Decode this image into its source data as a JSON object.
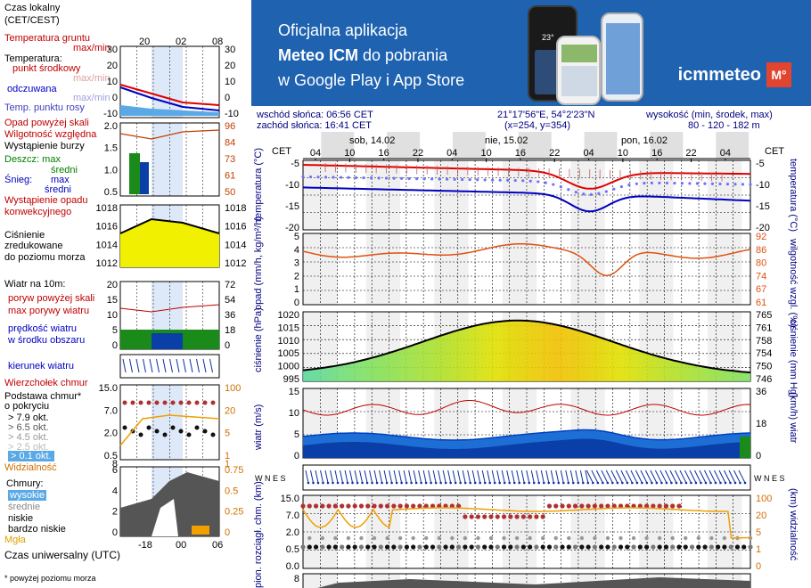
{
  "banner": {
    "line1": "Oficjalna aplikacja",
    "line2_bold": "Meteo ICM",
    "line2_rest": " do pobrania",
    "line3": "w Google Play i App Store",
    "logo_name": "icmmeteo",
    "logo_badge": "M°",
    "phone_temp": "23°"
  },
  "legend": {
    "czas_lokalny": "Czas lokalny",
    "czas_lokalny_2": "(CET/CEST)",
    "local_ticks": [
      "20",
      "02",
      "08"
    ],
    "temp_gruntu": "Temperatura gruntu",
    "max_min": "max/min",
    "temperatura": "Temperatura:",
    "punkt_srodkowy": "punkt środkowy",
    "max_min_2": "max/min",
    "odczuwana": "odczuwana",
    "max_min_3": "max/min",
    "punkt_rosy": "Temp. punktu rosy",
    "temp_ticks": [
      "30",
      "20",
      "10",
      "0",
      "-10"
    ],
    "opad_powyzej": "Opad powyżej skali",
    "wilgotnosc": "Wilgotność względna",
    "burza": "Wystąpienie burzy",
    "deszcz_max": "Deszcz: max",
    "deszcz_sredni": "średni",
    "snieg_max": "max",
    "snieg_sredni": "średni",
    "snieg": "Śnieg:",
    "opad_konw": "Wystąpienie opadu",
    "opad_konw_2": "konwekcyjnego",
    "precip_ticks": [
      "2.0",
      "1.5",
      "1.0",
      "0.5"
    ],
    "hum_ticks": [
      "96",
      "84",
      "73",
      "61",
      "50"
    ],
    "cisnienie": "Ciśnienie",
    "zredukowane": "zredukowane",
    "do_poziomu": "do poziomu morza",
    "press_ticks": [
      "1018",
      "1016",
      "1014",
      "1012"
    ],
    "wiatr_na": "Wiatr na 10m:",
    "poryw_powyzej": "poryw powyżej skali",
    "max_porywy": "max porywy wiatru",
    "predkosc": "prędkość wiatru",
    "w_srodku": "w środku obszaru",
    "wind_ticks": [
      "20",
      "15",
      "10",
      "5",
      "0"
    ],
    "wind_kmh_ticks": [
      "72",
      "54",
      "36",
      "18",
      "0"
    ],
    "kierunek": "kierunek wiatru",
    "wierzcholek": "Wierzchołek chmur",
    "podstawa": "Podstawa chmur*",
    "o_pokryciu": "o pokryciu",
    "okt_79": "> 7.9 okt.",
    "okt_65": "> 6.5 okt.",
    "okt_45": "> 4.5 okt.",
    "okt_25": "> 2.5 okt.",
    "okt_01": "> 0.1 okt.",
    "cloud_ticks": [
      "15.0",
      "7.0",
      "2.0",
      "0.5"
    ],
    "cloud_right_ticks": [
      "100",
      "20",
      "5",
      "1"
    ],
    "widzialnosc": "Widzialność",
    "vis_ticks": [
      "8",
      "1"
    ],
    "chmury": "Chmury:",
    "wysokie": "wysokie",
    "srednie": "średnie",
    "niskie": "niskie",
    "bardzo_niskie": "bardzo niskie",
    "mgla": "Mgła",
    "cover_ticks": [
      "6",
      "4",
      "2",
      "0"
    ],
    "cover_right_ticks": [
      "0.75",
      "0.5",
      "0.25",
      "0"
    ],
    "utc_ticks": [
      "-18",
      "00",
      "06"
    ],
    "czas_uniwersalny": "Czas uniwersalny (UTC)",
    "footnote": "* powyżej poziomu morza"
  },
  "info": {
    "sunrise": "wschód słońca: 06:56 CET",
    "sunset": "zachód słońca: 16:41 CET",
    "coords": "21°17'56\"E, 54°2'23\"N",
    "grid": "(x=254,  y=354)",
    "height_label": "wysokość (min, środek, max)",
    "height_values": "80 - 120 - 182 m"
  },
  "timeline": {
    "cet": "CET",
    "days": [
      "sob, 14.02",
      "nie, 15.02",
      "pon, 16.02"
    ],
    "hours": [
      "04",
      "10",
      "16",
      "22",
      "04",
      "10",
      "16",
      "22",
      "04",
      "10",
      "16",
      "22",
      "04"
    ]
  },
  "panels": {
    "temperature": {
      "left_label": "temperatura (°C)",
      "right_label": "temperatura (°C)",
      "left_ticks": [
        "-5",
        "-10",
        "-15",
        "-20"
      ],
      "right_ticks": [
        "-5",
        "-10",
        "-15",
        "-20"
      ]
    },
    "precip": {
      "left_label": "opad (mm/h, kg/m²/h)",
      "right_label": "wilgotność wzgl. (%)",
      "left_ticks": [
        "5",
        "4",
        "3",
        "2",
        "1",
        "0"
      ],
      "right_ticks": [
        "92",
        "86",
        "80",
        "74",
        "67",
        "61"
      ]
    },
    "pressure": {
      "left_label": "ciśnienie (hPa)",
      "right_label": "ciśnienie (mm Hg)",
      "left_ticks": [
        "1020",
        "1015",
        "1010",
        "1005",
        "1000",
        "995"
      ],
      "right_ticks": [
        "765",
        "761",
        "758",
        "754",
        "750",
        "746"
      ]
    },
    "wind": {
      "left_label": "wiatr (m/s)",
      "right_label": "(km/h) wiatr",
      "left_ticks": [
        "15",
        "10",
        "5",
        "0"
      ],
      "right_ticks": [
        "36",
        "18",
        "0"
      ]
    },
    "winddir": {
      "left_symbol": "W N E S",
      "right_symbol": "W N E S"
    },
    "clouds": {
      "left_label": "pion. rozciągł. chm. (km)",
      "right_label": "(km) widzialność",
      "left_ticks": [
        "15.0",
        "7.0",
        "2.0",
        "0.5",
        "0.0"
      ],
      "right_ticks": [
        "100",
        "20",
        "5",
        "1",
        "0"
      ]
    },
    "bottom": {
      "left_ticks": [
        "8"
      ]
    }
  },
  "colors": {
    "banner_bg": "#1e62b0",
    "temp_line": "#e00000",
    "feels_line": "#0000c0",
    "dew_dots": "#7070ff",
    "humidity": "#e05010",
    "pressure_line": "#000000",
    "wind_speed": "#0040c0",
    "gust": "#c00000",
    "grid": "#000000",
    "plot_bg": "#ffffff",
    "plot_alt_bg": "#e6e6e6"
  }
}
